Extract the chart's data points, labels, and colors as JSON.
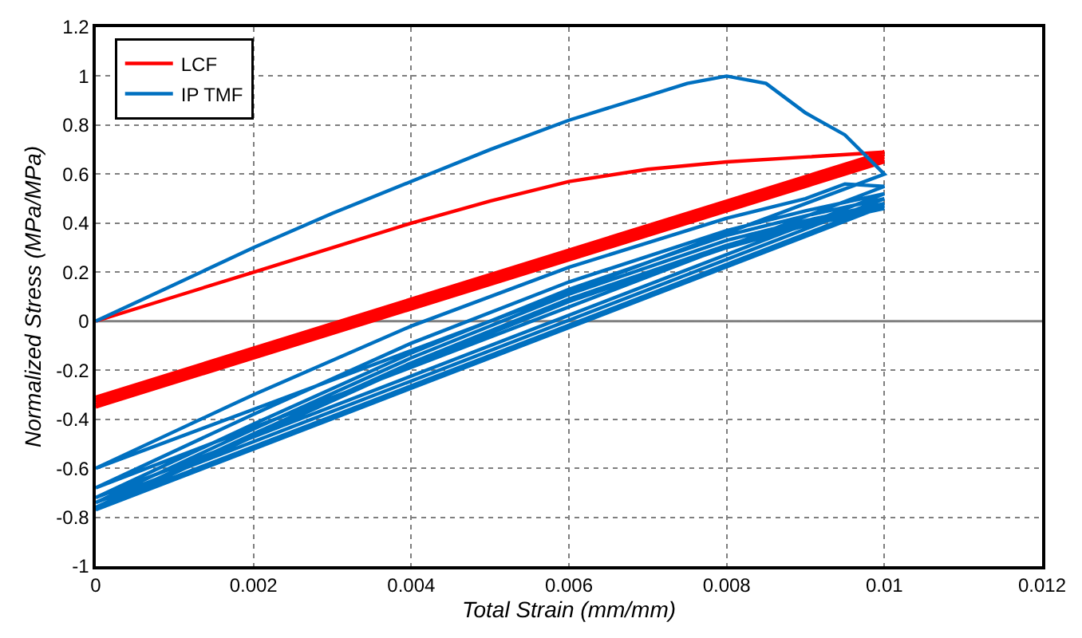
{
  "chart_data": {
    "type": "line",
    "xlabel": "Total Strain (mm/mm)",
    "ylabel": "Normalized Stress (MPa/MPa)",
    "xlim": [
      0,
      0.012
    ],
    "xticks": [
      0,
      0.002,
      0.004,
      0.006,
      0.008,
      0.01,
      0.012
    ],
    "ylim": [
      -1,
      1.2
    ],
    "yticks": [
      -1,
      -0.8,
      -0.6,
      -0.4,
      -0.2,
      0,
      0.2,
      0.4,
      0.6,
      0.8,
      1,
      1.2
    ],
    "grid": true,
    "legend": "top left",
    "marker": "none",
    "line_style": "solid",
    "ref_lines": [
      {
        "axis": "y",
        "value": 0,
        "color": "#808080"
      }
    ],
    "series": [
      {
        "name": "LCF",
        "color": "#ff0000",
        "x": [
          0,
          0.001,
          0.002,
          0.003,
          0.004,
          0.005,
          0.006,
          0.007,
          0.008,
          0.009,
          0.01,
          0,
          0.01,
          0,
          0.01,
          0,
          0.01,
          0,
          0.01,
          0,
          0.01
        ],
        "values": [
          0,
          0.1,
          0.2,
          0.3,
          0.4,
          0.49,
          0.57,
          0.62,
          0.65,
          0.67,
          0.69,
          -0.31,
          0.69,
          -0.32,
          0.68,
          -0.33,
          0.67,
          -0.34,
          0.66,
          -0.35,
          0.65
        ]
      },
      {
        "name": "IP TMF",
        "color": "#0070c0",
        "x": [
          0,
          0.001,
          0.002,
          0.003,
          0.004,
          0.005,
          0.006,
          0.007,
          0.0075,
          0.008,
          0.0085,
          0.009,
          0.0095,
          0.01,
          0,
          0.002,
          0.004,
          0.006,
          0.008,
          0.009,
          0.0095,
          0.01,
          0,
          0.002,
          0.004,
          0.006,
          0.008,
          0.009,
          0.01,
          0,
          0.002,
          0.004,
          0.006,
          0.008,
          0.009,
          0.01,
          0,
          0.002,
          0.004,
          0.006,
          0.008,
          0.009,
          0.01,
          0,
          0.002,
          0.004,
          0.006,
          0.008,
          0.009,
          0.01,
          0,
          0.002,
          0.004,
          0.006,
          0.008,
          0.009,
          0.01
        ],
        "values": [
          0,
          0.15,
          0.3,
          0.44,
          0.57,
          0.7,
          0.82,
          0.92,
          0.97,
          1.0,
          0.97,
          0.85,
          0.76,
          0.6,
          -0.6,
          -0.3,
          -0.02,
          0.22,
          0.42,
          0.5,
          0.56,
          0.55,
          -0.68,
          -0.38,
          -0.09,
          0.16,
          0.37,
          0.45,
          0.52,
          -0.72,
          -0.42,
          -0.13,
          0.13,
          0.35,
          0.43,
          0.5,
          -0.74,
          -0.44,
          -0.15,
          0.11,
          0.33,
          0.41,
          0.48,
          -0.76,
          -0.46,
          -0.17,
          0.09,
          0.31,
          0.4,
          0.47,
          -0.77,
          -0.47,
          -0.18,
          0.08,
          0.3,
          0.39,
          0.46
        ]
      }
    ]
  }
}
